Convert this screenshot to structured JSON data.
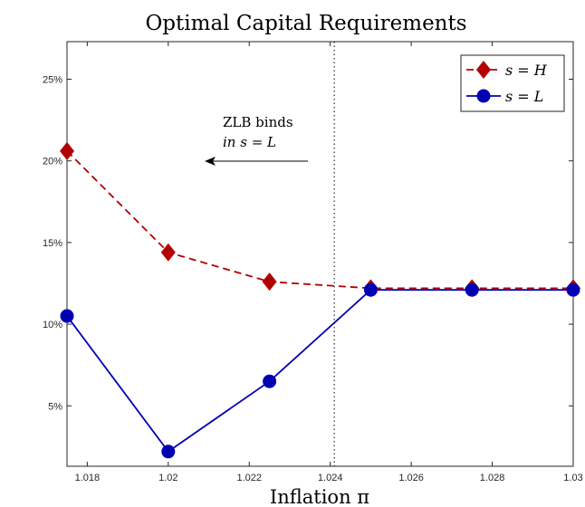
{
  "chart_data": {
    "type": "line",
    "title": "Optimal Capital Requirements",
    "xlabel": "Inflation π",
    "ylabel": "",
    "xlim": [
      1.0175,
      1.03
    ],
    "ylim": [
      1.3,
      27.3
    ],
    "x_ticks": [
      1.018,
      1.02,
      1.022,
      1.024,
      1.026,
      1.028,
      1.03
    ],
    "x_tick_labels": [
      "1.018",
      "1.02",
      "1.022",
      "1.024",
      "1.026",
      "1.028",
      "1.03"
    ],
    "y_ticks": [
      5,
      10,
      15,
      20,
      25
    ],
    "y_tick_labels": [
      "5%",
      "10%",
      "15%",
      "20%",
      "25%"
    ],
    "grid": false,
    "legend_position": "top-right",
    "series": [
      {
        "name": "s = H",
        "color": "#b30000",
        "marker": "diamond",
        "line_style": "dashed",
        "x": [
          1.0175,
          1.02,
          1.0225,
          1.025,
          1.0275,
          1.03
        ],
        "y": [
          20.6,
          14.4,
          12.6,
          12.2,
          12.2,
          12.2
        ]
      },
      {
        "name": "s = L",
        "color": "#0000b3",
        "marker": "circle",
        "line_style": "solid",
        "x": [
          1.0175,
          1.02,
          1.0225,
          1.025,
          1.0275,
          1.03
        ],
        "y": [
          10.5,
          2.2,
          6.5,
          12.1,
          12.1,
          12.1
        ]
      }
    ],
    "vertical_line": {
      "x": 1.0241,
      "style": "dotted"
    },
    "annotation": {
      "line1": "ZLB binds",
      "line2": "in s = L",
      "arrow": "left"
    }
  }
}
